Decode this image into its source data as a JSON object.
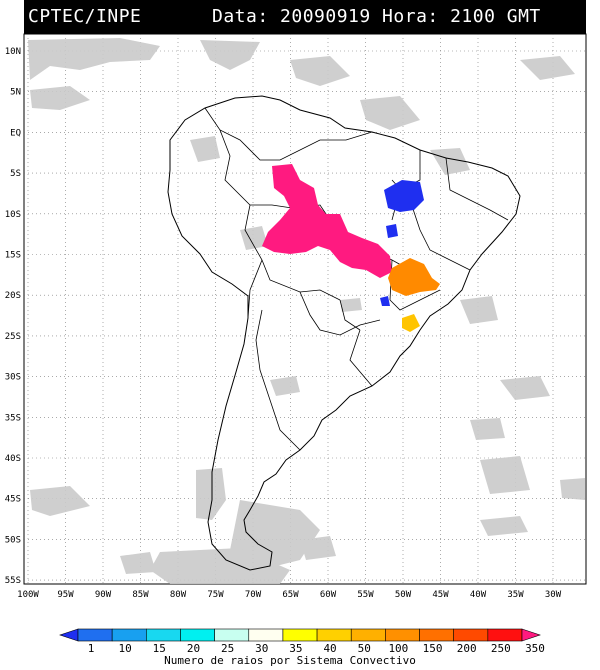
{
  "header": {
    "org": "CPTEC/INPE",
    "datetime": "Data: 20090919 Hora: 2100 GMT"
  },
  "map": {
    "lat_labels": [
      "10N",
      "5N",
      "EQ",
      "5S",
      "10S",
      "15S",
      "20S",
      "25S",
      "30S",
      "35S",
      "40S",
      "45S",
      "50S",
      "55S"
    ],
    "lon_labels": [
      "100W",
      "95W",
      "90W",
      "85W",
      "80W",
      "75W",
      "70W",
      "65W",
      "60W",
      "55W",
      "50W",
      "45W",
      "40W",
      "35W",
      "30W"
    ],
    "colors": {
      "cloud": "#c8c8c8",
      "magenta": "#ff1a80",
      "blue": "#1f2ff0",
      "orange": "#ff8a00",
      "yellow": "#ffc400"
    }
  },
  "legend": {
    "title": "Numero de raios por Sistema Convectivo",
    "labels": [
      "1",
      "10",
      "15",
      "20",
      "25",
      "30",
      "35",
      "40",
      "50",
      "100",
      "150",
      "200",
      "250",
      "350"
    ],
    "colors": [
      "#1f2ff0",
      "#1f6ff0",
      "#18a0f0",
      "#18d8f0",
      "#00f0f0",
      "#c8fff0",
      "#fffff0",
      "#ffff00",
      "#ffd000",
      "#ffb000",
      "#ff9000",
      "#ff7000",
      "#ff4a00",
      "#ff1010",
      "#ff1a80"
    ]
  }
}
